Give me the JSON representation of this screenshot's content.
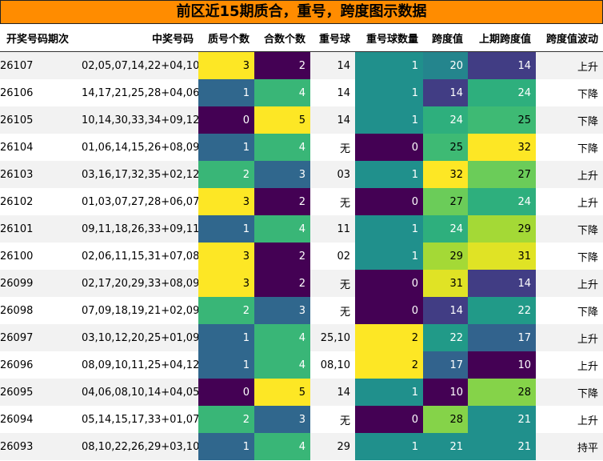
{
  "title": "前区近15期质合，重号，跨度图示数据",
  "headers": [
    "开奖号码期次",
    "中奖号码",
    "质号个数",
    "合数个数",
    "重号球",
    "重号球数量",
    "跨度值",
    "上期跨度值",
    "跨度值波动"
  ],
  "rows": [
    [
      "26107",
      "02,05,07,14,22+04,10",
      3,
      2,
      "14",
      1,
      20,
      14,
      "上升"
    ],
    [
      "26106",
      "14,17,21,25,28+04,06",
      1,
      4,
      "14",
      1,
      14,
      24,
      "下降"
    ],
    [
      "26105",
      "10,14,30,33,34+09,12",
      0,
      5,
      "14",
      1,
      24,
      25,
      "下降"
    ],
    [
      "26104",
      "01,06,14,15,26+08,09",
      1,
      4,
      "无",
      0,
      25,
      32,
      "下降"
    ],
    [
      "26103",
      "03,16,17,32,35+02,12",
      2,
      3,
      "03",
      1,
      32,
      27,
      "上升"
    ],
    [
      "26102",
      "01,03,07,27,28+06,07",
      3,
      2,
      "无",
      0,
      27,
      24,
      "上升"
    ],
    [
      "26101",
      "09,11,18,26,33+09,11",
      1,
      4,
      "11",
      1,
      24,
      29,
      "下降"
    ],
    [
      "26100",
      "02,06,11,15,31+07,08",
      3,
      2,
      "02",
      1,
      29,
      31,
      "下降"
    ],
    [
      "26099",
      "02,17,20,29,33+08,09",
      3,
      2,
      "无",
      0,
      31,
      14,
      "上升"
    ],
    [
      "26098",
      "07,09,18,19,21+02,09",
      2,
      3,
      "无",
      0,
      14,
      22,
      "下降"
    ],
    [
      "26097",
      "03,10,12,20,25+01,09",
      1,
      4,
      "25,10",
      2,
      22,
      17,
      "上升"
    ],
    [
      "26096",
      "08,09,10,11,25+04,12",
      1,
      4,
      "08,10",
      2,
      17,
      10,
      "上升"
    ],
    [
      "26095",
      "04,06,08,10,14+04,05",
      0,
      5,
      "14",
      1,
      10,
      28,
      "下降"
    ],
    [
      "26094",
      "05,14,15,17,33+01,07",
      2,
      3,
      "无",
      0,
      28,
      21,
      "上升"
    ],
    [
      "26093",
      "08,10,22,26,29+03,10",
      1,
      4,
      "29",
      1,
      21,
      21,
      "持平"
    ]
  ],
  "colors": {
    "title_bg": "#ff8c00",
    "colormap": "viridis",
    "row_stripe": "#f2f2f2"
  },
  "heat_ranges": {
    "prime_count": [
      0,
      3
    ],
    "composite_count": [
      2,
      5
    ],
    "repeat_count": [
      0,
      2
    ],
    "span": [
      10,
      32
    ],
    "prev_span": [
      10,
      32
    ]
  }
}
